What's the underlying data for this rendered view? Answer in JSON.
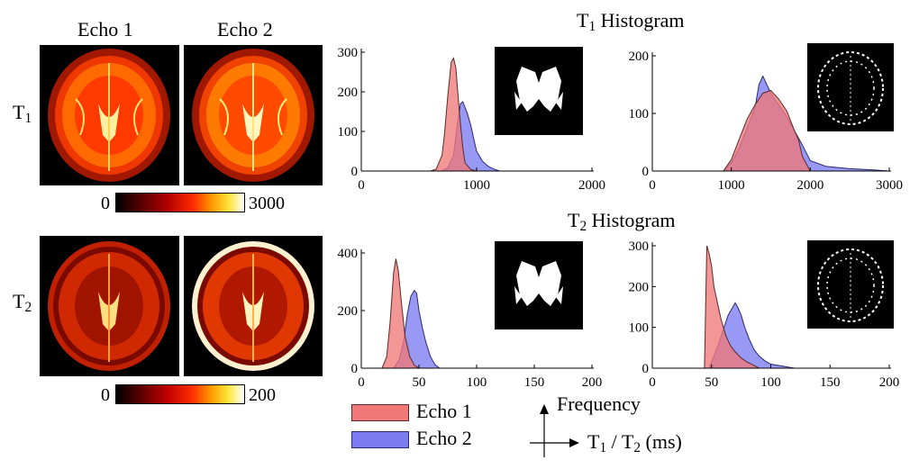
{
  "mri": {
    "column_headers": [
      "Echo 1",
      "Echo 2"
    ],
    "row_labels": [
      {
        "base": "T",
        "sub": "1"
      },
      {
        "base": "T",
        "sub": "2"
      }
    ],
    "colorbars": [
      {
        "min_label": "0",
        "max_label": "3000"
      },
      {
        "min_label": "0",
        "max_label": "200"
      }
    ]
  },
  "titles": {
    "t1": {
      "base": "T",
      "sub": "1",
      "rest": " Histogram"
    },
    "t2": {
      "base": "T",
      "sub": "2",
      "rest": " Histogram"
    }
  },
  "colors": {
    "echo1_fill": "#f07878",
    "echo1_stroke": "#5a2a2a",
    "echo2_fill": "#7b7bf2",
    "echo2_stroke": "#2a2a70"
  },
  "legend": {
    "items": [
      "Echo 1",
      "Echo 2"
    ],
    "y_axis": "Frequency",
    "x_axis": {
      "a": "T",
      "a_sub": "1",
      "sep": " / ",
      "b": "T",
      "b_sub": "2",
      "unit": " (ms)"
    }
  },
  "chart_data": [
    {
      "id": "t1-left",
      "type": "area",
      "title": "T1 Histogram",
      "xlim": [
        0,
        2000
      ],
      "ylim": [
        0,
        300
      ],
      "xticks": [
        0,
        1000,
        2000
      ],
      "yticks": [
        0,
        100,
        200,
        300
      ],
      "series": [
        {
          "name": "Echo 1",
          "x": [
            600,
            650,
            700,
            720,
            750,
            780,
            800,
            820,
            850,
            880,
            900,
            950,
            1000
          ],
          "y": [
            0,
            5,
            40,
            90,
            190,
            275,
            285,
            260,
            150,
            60,
            20,
            4,
            0
          ]
        },
        {
          "name": "Echo 2",
          "x": [
            700,
            750,
            800,
            830,
            860,
            880,
            900,
            920,
            950,
            980,
            1000,
            1050,
            1100,
            1150,
            1200
          ],
          "y": [
            0,
            8,
            40,
            110,
            170,
            175,
            160,
            145,
            115,
            75,
            50,
            25,
            12,
            5,
            0
          ]
        }
      ]
    },
    {
      "id": "t1-right",
      "type": "area",
      "title": "T1 Histogram",
      "xlim": [
        0,
        3000
      ],
      "ylim": [
        0,
        200
      ],
      "xticks": [
        0,
        1000,
        2000,
        3000
      ],
      "yticks": [
        0,
        100,
        200
      ],
      "series": [
        {
          "name": "Echo 1",
          "x": [
            900,
            1000,
            1100,
            1200,
            1300,
            1400,
            1500,
            1600,
            1700,
            1800,
            1850,
            1900,
            2000
          ],
          "y": [
            0,
            20,
            55,
            90,
            115,
            135,
            140,
            125,
            105,
            70,
            55,
            25,
            0
          ]
        },
        {
          "name": "Echo 2",
          "x": [
            900,
            1000,
            1100,
            1200,
            1300,
            1350,
            1400,
            1450,
            1500,
            1600,
            1700,
            1800,
            1900,
            2000,
            2200,
            2500,
            2800,
            3000
          ],
          "y": [
            0,
            15,
            40,
            75,
            110,
            150,
            165,
            150,
            135,
            115,
            95,
            70,
            45,
            18,
            8,
            4,
            2,
            0
          ]
        }
      ]
    },
    {
      "id": "t2-left",
      "type": "area",
      "title": "T2 Histogram",
      "xlim": [
        0,
        200
      ],
      "ylim": [
        0,
        400
      ],
      "xticks": [
        0,
        50,
        100,
        150,
        200
      ],
      "yticks": [
        0,
        200,
        400
      ],
      "series": [
        {
          "name": "Echo 1",
          "x": [
            18,
            22,
            25,
            28,
            30,
            32,
            35,
            38,
            42,
            46,
            50
          ],
          "y": [
            0,
            40,
            160,
            330,
            380,
            340,
            220,
            110,
            40,
            10,
            0
          ]
        },
        {
          "name": "Echo 2",
          "x": [
            28,
            33,
            37,
            40,
            43,
            46,
            48,
            50,
            53,
            56,
            60,
            64,
            68
          ],
          "y": [
            0,
            30,
            100,
            190,
            250,
            270,
            260,
            200,
            140,
            90,
            40,
            12,
            0
          ]
        }
      ]
    },
    {
      "id": "t2-right",
      "type": "area",
      "title": "T2 Histogram",
      "xlim": [
        0,
        200
      ],
      "ylim": [
        0,
        300
      ],
      "xticks": [
        0,
        50,
        100,
        150,
        200
      ],
      "yticks": [
        0,
        100,
        200,
        300
      ],
      "series": [
        {
          "name": "Echo 1",
          "x": [
            44,
            46,
            48,
            50,
            52,
            55,
            58,
            62,
            66,
            70,
            75,
            80,
            85,
            90
          ],
          "y": [
            0,
            300,
            280,
            250,
            200,
            160,
            120,
            80,
            55,
            40,
            25,
            15,
            8,
            0
          ]
        },
        {
          "name": "Echo 2",
          "x": [
            48,
            52,
            56,
            60,
            64,
            68,
            70,
            72,
            75,
            78,
            82,
            86,
            90,
            95,
            100,
            110,
            120
          ],
          "y": [
            0,
            30,
            60,
            95,
            130,
            150,
            160,
            150,
            130,
            100,
            70,
            45,
            30,
            18,
            10,
            5,
            0
          ]
        }
      ]
    }
  ]
}
